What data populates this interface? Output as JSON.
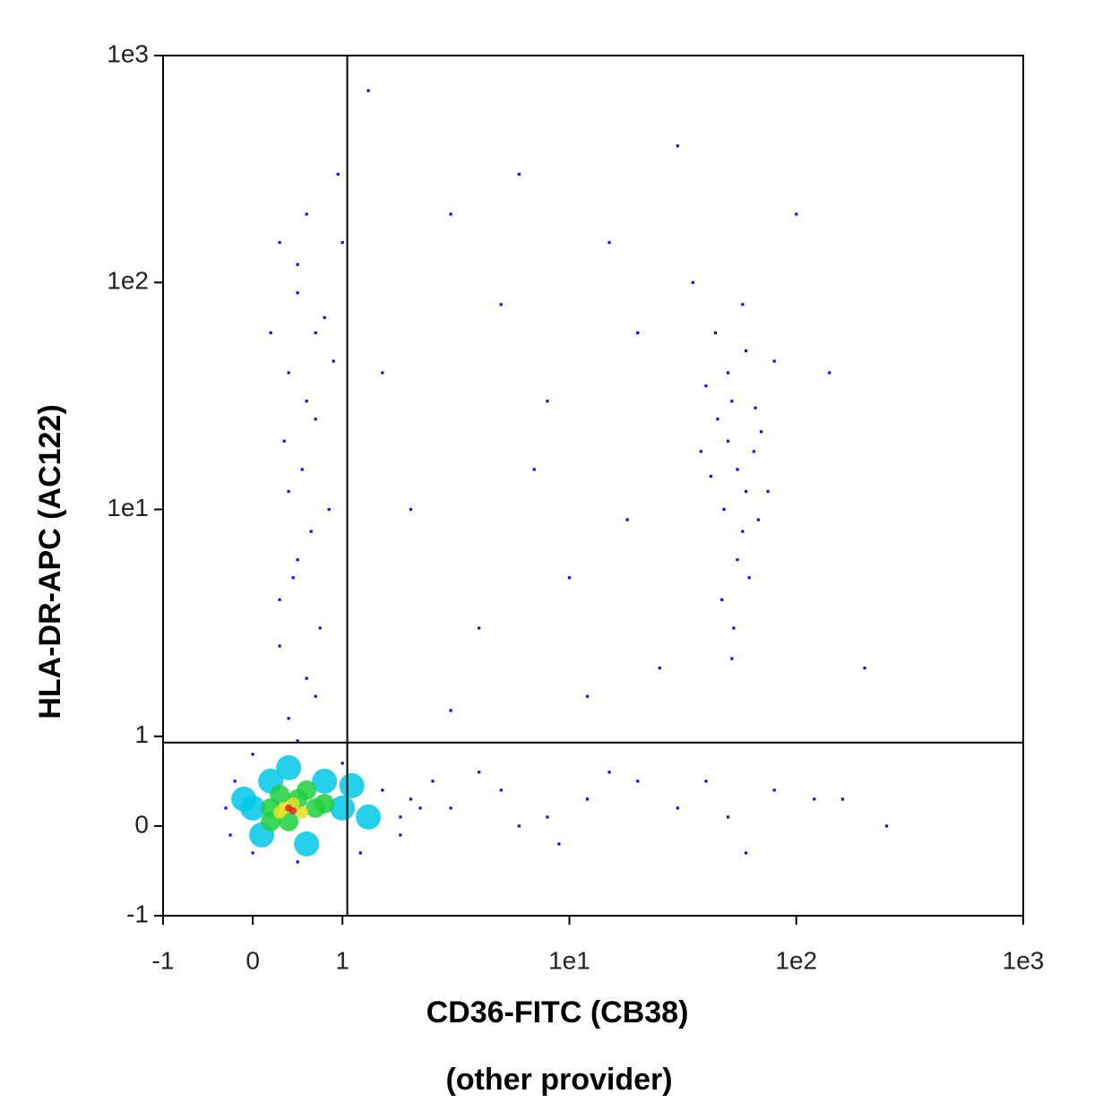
{
  "chart_data": {
    "type": "scatter",
    "xlabel": "CD36-FITC (CB38)",
    "subtitle": "(other provider)",
    "ylabel": "HLA-DR-APC (AC122)",
    "xscale": "biexponential",
    "yscale": "biexponential",
    "xlim": [
      -1,
      1000
    ],
    "ylim": [
      -1,
      1000
    ],
    "xticks": [
      -1,
      0,
      1,
      {
        "value": 10,
        "label": "1e1"
      },
      {
        "value": 100,
        "label": "1e2"
      },
      {
        "value": 1000,
        "label": "1e3"
      }
    ],
    "yticks": [
      -1,
      0,
      1,
      {
        "value": 10,
        "label": "1e1"
      },
      {
        "value": 100,
        "label": "1e2"
      },
      {
        "value": 1000,
        "label": "1e3"
      }
    ],
    "gates": {
      "x": 1.05,
      "y": 0.93,
      "color": "#000000"
    },
    "series": [
      {
        "color": "#1010e0",
        "x": [
          0.3,
          0.5,
          0.7,
          0.4,
          0.6,
          0.8,
          0.35,
          0.55,
          0.65,
          0.45,
          0.75,
          0.3,
          0.5,
          0.9,
          0.2,
          0.6,
          0.4,
          0.7,
          0.5,
          0.85,
          0.3,
          0.6,
          0.95,
          1.0,
          0.7,
          0.4,
          50,
          55,
          60,
          45,
          52,
          65,
          48,
          58,
          42,
          70,
          50,
          60,
          55,
          47,
          62,
          40,
          75,
          53,
          66,
          44,
          58,
          35,
          80,
          52,
          68,
          38,
          3,
          5,
          8,
          15,
          20,
          2,
          4,
          10,
          25,
          1.5,
          6,
          30,
          12,
          1.3,
          100,
          140,
          200,
          3,
          7,
          18,
          2,
          3,
          5,
          8,
          12,
          20,
          30,
          50,
          80,
          120,
          250,
          4,
          6,
          15,
          40,
          160,
          2.5,
          1.8,
          9,
          60,
          -0.3,
          -0.2,
          0,
          0.5,
          1,
          1.5,
          1.8,
          1.2,
          0.5,
          0,
          -0.25,
          2.2
        ],
        "y": [
          150,
          90,
          60,
          40,
          30,
          70,
          20,
          15,
          8,
          5,
          3,
          2.5,
          120,
          45,
          60,
          200,
          12,
          25,
          6,
          10,
          4,
          1.8,
          300,
          150,
          1.5,
          1.2,
          20,
          15,
          12,
          25,
          30,
          18,
          10,
          8,
          14,
          22,
          40,
          50,
          6,
          4,
          5,
          35,
          12,
          3,
          28,
          60,
          80,
          100,
          45,
          2.2,
          9,
          18,
          200,
          80,
          30,
          150,
          60,
          10,
          3,
          5,
          2,
          40,
          300,
          400,
          1.5,
          700,
          200,
          40,
          2,
          1.3,
          15,
          9,
          0.3,
          0.2,
          0.4,
          0.1,
          0.3,
          0.5,
          0.2,
          0.1,
          0.4,
          0.3,
          0,
          0.6,
          0,
          0.6,
          0.5,
          0.3,
          0.5,
          -0.1,
          -0.2,
          -0.3,
          0.2,
          0.5,
          0.8,
          0.95,
          0.7,
          0.4,
          0.1,
          -0.3,
          -0.4,
          -0.3,
          -0.1,
          0.2
        ]
      },
      {
        "color": "#00c8e8",
        "x": [
          0,
          0.2,
          0.8,
          1,
          1.3,
          0.6,
          0.1,
          1.1,
          -0.1,
          0.4
        ],
        "y": [
          0.2,
          0.5,
          0.5,
          0.2,
          0.1,
          -0.2,
          -0.1,
          0.45,
          0.3,
          0.65
        ]
      },
      {
        "color": "#20d040",
        "x": [
          0.2,
          0.3,
          0.5,
          0.7,
          0.4,
          0.6,
          0.2,
          0.8
        ],
        "y": [
          0.2,
          0.35,
          0.3,
          0.2,
          0.05,
          0.4,
          0.05,
          0.25
        ]
      },
      {
        "color": "#e8e020",
        "x": [
          0.35,
          0.45,
          0.55,
          0.3
        ],
        "y": [
          0.2,
          0.25,
          0.15,
          0.15
        ]
      },
      {
        "color": "#e02010",
        "x": [
          0.4,
          0.45
        ],
        "y": [
          0.2,
          0.17
        ]
      }
    ]
  }
}
